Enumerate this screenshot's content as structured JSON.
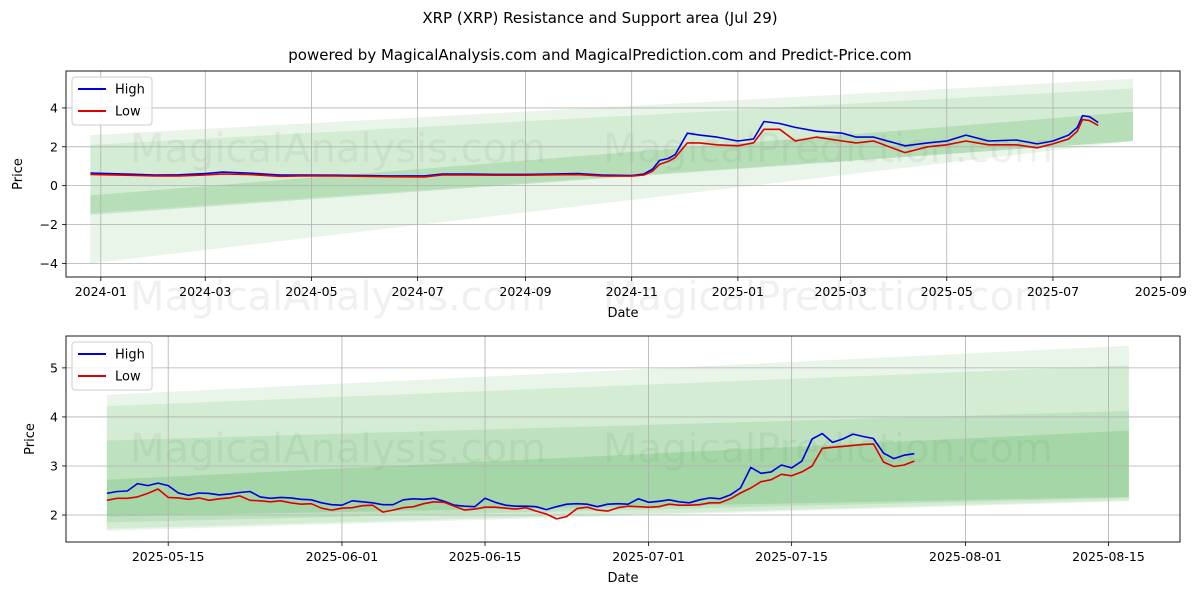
{
  "title": "XRP (XRP) Resistance and Support area (Jul 29)",
  "subtitle": "powered by MagicalAnalysis.com and MagicalPrediction.com and Predict-Price.com",
  "watermarks": [
    "MagicalAnalysis.com",
    "MagicalPrediction.com"
  ],
  "colors": {
    "high": "#0000dd",
    "low": "#dd0000",
    "band": "#4caf50"
  },
  "chart_data": [
    {
      "type": "line",
      "xlabel": "Date",
      "ylabel": "Price",
      "xlim": [
        "2023-12-12",
        "2025-09-12"
      ],
      "ylim": [
        -4.7,
        5.9
      ],
      "xticks": [
        "2024-01",
        "2024-03",
        "2024-05",
        "2024-07",
        "2024-09",
        "2024-11",
        "2025-01",
        "2025-03",
        "2025-05",
        "2025-07",
        "2025-09"
      ],
      "yticks": [
        -4,
        -2,
        0,
        2,
        4
      ],
      "legend": {
        "position": "top-left",
        "entries": [
          "High",
          "Low"
        ]
      },
      "grid": true,
      "series": [
        {
          "name": "High",
          "x": [
            "2023-12-26",
            "2024-01-15",
            "2024-02-01",
            "2024-02-15",
            "2024-03-01",
            "2024-03-11",
            "2024-03-25",
            "2024-04-13",
            "2024-04-25",
            "2024-05-15",
            "2024-06-01",
            "2024-06-15",
            "2024-07-05",
            "2024-07-15",
            "2024-07-31",
            "2024-08-15",
            "2024-09-01",
            "2024-09-15",
            "2024-10-01",
            "2024-10-15",
            "2024-11-01",
            "2024-11-08",
            "2024-11-13",
            "2024-11-17",
            "2024-11-22",
            "2024-11-26",
            "2024-12-03",
            "2024-12-10",
            "2024-12-20",
            "2025-01-01",
            "2025-01-10",
            "2025-01-16",
            "2025-01-25",
            "2025-02-03",
            "2025-02-15",
            "2025-03-02",
            "2025-03-10",
            "2025-03-20",
            "2025-04-01",
            "2025-04-07",
            "2025-04-20",
            "2025-05-01",
            "2025-05-12",
            "2025-05-25",
            "2025-06-10",
            "2025-06-22",
            "2025-07-01",
            "2025-07-10",
            "2025-07-15",
            "2025-07-18",
            "2025-07-22",
            "2025-07-27"
          ],
          "values": [
            0.65,
            0.6,
            0.55,
            0.56,
            0.62,
            0.7,
            0.65,
            0.55,
            0.55,
            0.54,
            0.52,
            0.5,
            0.5,
            0.6,
            0.6,
            0.58,
            0.58,
            0.6,
            0.62,
            0.55,
            0.52,
            0.6,
            0.85,
            1.3,
            1.4,
            1.6,
            2.7,
            2.6,
            2.5,
            2.3,
            2.4,
            3.3,
            3.2,
            3.0,
            2.8,
            2.7,
            2.5,
            2.5,
            2.2,
            2.05,
            2.2,
            2.3,
            2.6,
            2.3,
            2.35,
            2.15,
            2.3,
            2.6,
            3.0,
            3.6,
            3.55,
            3.25
          ]
        },
        {
          "name": "Low",
          "x": [
            "2023-12-26",
            "2024-01-15",
            "2024-02-01",
            "2024-02-15",
            "2024-03-01",
            "2024-03-11",
            "2024-03-25",
            "2024-04-13",
            "2024-04-25",
            "2024-05-15",
            "2024-06-01",
            "2024-06-15",
            "2024-07-05",
            "2024-07-15",
            "2024-07-31",
            "2024-08-15",
            "2024-09-01",
            "2024-09-15",
            "2024-10-01",
            "2024-10-15",
            "2024-11-01",
            "2024-11-08",
            "2024-11-13",
            "2024-11-17",
            "2024-11-22",
            "2024-11-26",
            "2024-12-03",
            "2024-12-10",
            "2024-12-20",
            "2025-01-01",
            "2025-01-10",
            "2025-01-16",
            "2025-01-25",
            "2025-02-03",
            "2025-02-15",
            "2025-03-02",
            "2025-03-10",
            "2025-03-20",
            "2025-04-01",
            "2025-04-07",
            "2025-04-20",
            "2025-05-01",
            "2025-05-12",
            "2025-05-25",
            "2025-06-10",
            "2025-06-22",
            "2025-07-01",
            "2025-07-10",
            "2025-07-15",
            "2025-07-18",
            "2025-07-22",
            "2025-07-27"
          ],
          "values": [
            0.58,
            0.54,
            0.5,
            0.5,
            0.55,
            0.6,
            0.58,
            0.48,
            0.5,
            0.5,
            0.48,
            0.46,
            0.45,
            0.55,
            0.55,
            0.54,
            0.54,
            0.56,
            0.57,
            0.5,
            0.49,
            0.55,
            0.75,
            1.1,
            1.25,
            1.45,
            2.2,
            2.2,
            2.1,
            2.05,
            2.2,
            2.9,
            2.9,
            2.3,
            2.5,
            2.3,
            2.2,
            2.3,
            1.9,
            1.7,
            2.0,
            2.1,
            2.3,
            2.1,
            2.1,
            1.95,
            2.15,
            2.4,
            2.8,
            3.4,
            3.35,
            3.1
          ]
        }
      ],
      "bands": [
        {
          "x": [
            "2023-12-26",
            "2025-08-16"
          ],
          "upper": [
            2.6,
            5.5
          ],
          "lower": [
            -4.0,
            2.3
          ],
          "opacity": 0.13
        },
        {
          "x": [
            "2023-12-26",
            "2025-08-16"
          ],
          "upper": [
            2.1,
            5.0
          ],
          "lower": [
            -1.4,
            2.3
          ],
          "opacity": 0.13
        },
        {
          "x": [
            "2023-12-26",
            "2025-08-16"
          ],
          "upper": [
            -0.5,
            3.8
          ],
          "lower": [
            -1.5,
            2.3
          ],
          "opacity": 0.22
        }
      ]
    },
    {
      "type": "line",
      "xlabel": "Date",
      "ylabel": "Price",
      "xlim": [
        "2025-05-05",
        "2025-08-22"
      ],
      "ylim": [
        1.45,
        5.65
      ],
      "xticks": [
        "2025-05-15",
        "2025-06-01",
        "2025-06-15",
        "2025-07-01",
        "2025-07-15",
        "2025-08-01",
        "2025-08-15"
      ],
      "yticks": [
        2,
        3,
        4,
        5
      ],
      "legend": {
        "position": "top-left",
        "entries": [
          "High",
          "Low"
        ]
      },
      "grid": true,
      "series": [
        {
          "name": "High",
          "x": [
            "2025-05-09",
            "2025-05-10",
            "2025-05-11",
            "2025-05-12",
            "2025-05-13",
            "2025-05-14",
            "2025-05-15",
            "2025-05-16",
            "2025-05-17",
            "2025-05-18",
            "2025-05-19",
            "2025-05-20",
            "2025-05-21",
            "2025-05-22",
            "2025-05-23",
            "2025-05-24",
            "2025-05-25",
            "2025-05-26",
            "2025-05-27",
            "2025-05-28",
            "2025-05-29",
            "2025-05-30",
            "2025-05-31",
            "2025-06-01",
            "2025-06-02",
            "2025-06-03",
            "2025-06-04",
            "2025-06-05",
            "2025-06-06",
            "2025-06-07",
            "2025-06-08",
            "2025-06-09",
            "2025-06-10",
            "2025-06-11",
            "2025-06-12",
            "2025-06-13",
            "2025-06-14",
            "2025-06-15",
            "2025-06-16",
            "2025-06-17",
            "2025-06-18",
            "2025-06-19",
            "2025-06-20",
            "2025-06-21",
            "2025-06-22",
            "2025-06-23",
            "2025-06-24",
            "2025-06-25",
            "2025-06-26",
            "2025-06-27",
            "2025-06-28",
            "2025-06-29",
            "2025-06-30",
            "2025-07-01",
            "2025-07-02",
            "2025-07-03",
            "2025-07-04",
            "2025-07-05",
            "2025-07-06",
            "2025-07-07",
            "2025-07-08",
            "2025-07-09",
            "2025-07-10",
            "2025-07-11",
            "2025-07-12",
            "2025-07-13",
            "2025-07-14",
            "2025-07-15",
            "2025-07-16",
            "2025-07-17",
            "2025-07-18",
            "2025-07-19",
            "2025-07-20",
            "2025-07-21",
            "2025-07-22",
            "2025-07-23",
            "2025-07-24",
            "2025-07-25",
            "2025-07-26",
            "2025-07-27"
          ],
          "values": [
            2.44,
            2.48,
            2.49,
            2.64,
            2.6,
            2.65,
            2.6,
            2.45,
            2.4,
            2.45,
            2.44,
            2.41,
            2.43,
            2.46,
            2.48,
            2.37,
            2.34,
            2.36,
            2.35,
            2.32,
            2.31,
            2.25,
            2.21,
            2.2,
            2.29,
            2.27,
            2.25,
            2.21,
            2.21,
            2.31,
            2.33,
            2.32,
            2.34,
            2.28,
            2.2,
            2.18,
            2.17,
            2.34,
            2.26,
            2.2,
            2.18,
            2.18,
            2.17,
            2.11,
            2.17,
            2.22,
            2.23,
            2.22,
            2.17,
            2.22,
            2.23,
            2.22,
            2.33,
            2.26,
            2.28,
            2.31,
            2.27,
            2.25,
            2.31,
            2.35,
            2.33,
            2.41,
            2.55,
            2.97,
            2.85,
            2.88,
            3.02,
            2.96,
            3.1,
            3.55,
            3.66,
            3.48,
            3.55,
            3.65,
            3.6,
            3.56,
            3.26,
            3.15,
            3.22,
            3.25
          ]
        },
        {
          "name": "Low",
          "x": [
            "2025-05-09",
            "2025-05-10",
            "2025-05-11",
            "2025-05-12",
            "2025-05-13",
            "2025-05-14",
            "2025-05-15",
            "2025-05-16",
            "2025-05-17",
            "2025-05-18",
            "2025-05-19",
            "2025-05-20",
            "2025-05-21",
            "2025-05-22",
            "2025-05-23",
            "2025-05-24",
            "2025-05-25",
            "2025-05-26",
            "2025-05-27",
            "2025-05-28",
            "2025-05-29",
            "2025-05-30",
            "2025-05-31",
            "2025-06-01",
            "2025-06-02",
            "2025-06-03",
            "2025-06-04",
            "2025-06-05",
            "2025-06-06",
            "2025-06-07",
            "2025-06-08",
            "2025-06-09",
            "2025-06-10",
            "2025-06-11",
            "2025-06-12",
            "2025-06-13",
            "2025-06-14",
            "2025-06-15",
            "2025-06-16",
            "2025-06-17",
            "2025-06-18",
            "2025-06-19",
            "2025-06-20",
            "2025-06-21",
            "2025-06-22",
            "2025-06-23",
            "2025-06-24",
            "2025-06-25",
            "2025-06-26",
            "2025-06-27",
            "2025-06-28",
            "2025-06-29",
            "2025-06-30",
            "2025-07-01",
            "2025-07-02",
            "2025-07-03",
            "2025-07-04",
            "2025-07-05",
            "2025-07-06",
            "2025-07-07",
            "2025-07-08",
            "2025-07-09",
            "2025-07-10",
            "2025-07-11",
            "2025-07-12",
            "2025-07-13",
            "2025-07-14",
            "2025-07-15",
            "2025-07-16",
            "2025-07-17",
            "2025-07-18",
            "2025-07-19",
            "2025-07-20",
            "2025-07-21",
            "2025-07-22",
            "2025-07-23",
            "2025-07-24",
            "2025-07-25",
            "2025-07-26",
            "2025-07-27"
          ],
          "values": [
            2.3,
            2.34,
            2.34,
            2.37,
            2.44,
            2.53,
            2.36,
            2.35,
            2.32,
            2.35,
            2.3,
            2.33,
            2.35,
            2.39,
            2.3,
            2.29,
            2.27,
            2.29,
            2.25,
            2.22,
            2.23,
            2.14,
            2.1,
            2.14,
            2.15,
            2.19,
            2.2,
            2.06,
            2.1,
            2.15,
            2.17,
            2.23,
            2.27,
            2.26,
            2.18,
            2.1,
            2.12,
            2.16,
            2.16,
            2.14,
            2.12,
            2.15,
            2.08,
            2.02,
            1.92,
            1.97,
            2.13,
            2.16,
            2.1,
            2.08,
            2.15,
            2.18,
            2.17,
            2.16,
            2.17,
            2.22,
            2.2,
            2.2,
            2.21,
            2.25,
            2.25,
            2.33,
            2.45,
            2.55,
            2.68,
            2.72,
            2.83,
            2.8,
            2.88,
            3.0,
            3.36,
            3.38,
            3.4,
            3.42,
            3.44,
            3.45,
            3.08,
            2.99,
            3.02,
            3.1
          ]
        }
      ],
      "bands": [
        {
          "x": [
            "2025-05-09",
            "2025-08-17"
          ],
          "upper": [
            4.45,
            5.45
          ],
          "lower": [
            1.68,
            2.28
          ],
          "opacity": 0.13
        },
        {
          "x": [
            "2025-05-09",
            "2025-08-17"
          ],
          "upper": [
            4.22,
            5.05
          ],
          "lower": [
            1.72,
            2.3
          ],
          "opacity": 0.13
        },
        {
          "x": [
            "2025-05-09",
            "2025-08-17"
          ],
          "upper": [
            3.52,
            4.12
          ],
          "lower": [
            1.85,
            2.35
          ],
          "opacity": 0.16
        },
        {
          "x": [
            "2025-05-09",
            "2025-08-17"
          ],
          "upper": [
            2.72,
            3.72
          ],
          "lower": [
            1.97,
            2.37
          ],
          "opacity": 0.22
        }
      ]
    }
  ]
}
